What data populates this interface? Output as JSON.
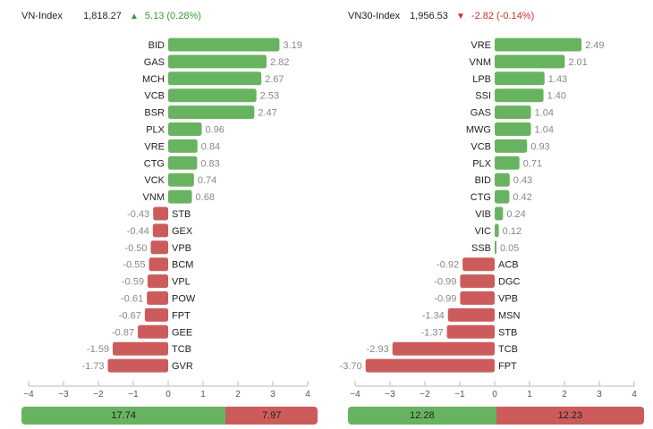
{
  "panels": [
    {
      "header": {
        "name": "VN-Index",
        "value": "1,818.27",
        "direction": "up",
        "arrow": "▲",
        "change": "5.13 (0.28%)"
      },
      "chart_data": {
        "type": "bar",
        "orientation": "horizontal",
        "categories": [
          "BID",
          "GAS",
          "MCH",
          "VCB",
          "BSR",
          "PLX",
          "VRE",
          "CTG",
          "VCK",
          "VNM",
          "STB",
          "GEX",
          "VPB",
          "BCM",
          "VPL",
          "POW",
          "FPT",
          "GEE",
          "TCB",
          "GVR"
        ],
        "values": [
          3.19,
          2.82,
          2.67,
          2.53,
          2.47,
          0.96,
          0.84,
          0.83,
          0.74,
          0.68,
          -0.43,
          -0.44,
          -0.5,
          -0.55,
          -0.59,
          -0.61,
          -0.67,
          -0.87,
          -1.59,
          -1.73
        ],
        "labels": [
          "3.19",
          "2.82",
          "2.67",
          "2.53",
          "2.47",
          "0.96",
          "0.84",
          "0.83",
          "0.74",
          "0.68",
          "-0.43",
          "-0.44",
          "-0.50",
          "-0.55",
          "-0.59",
          "-0.61",
          "-0.67",
          "-0.87",
          "-1.59",
          "-1.73"
        ],
        "xlim": [
          -4,
          4
        ],
        "ticks": [
          "−4",
          "−3",
          "−2",
          "−1",
          "0",
          "1",
          "2",
          "3",
          "4"
        ]
      },
      "summary": {
        "positive": 17.74,
        "negative": 7.97,
        "positive_label": "17.74",
        "negative_label": "7.97"
      }
    },
    {
      "header": {
        "name": "VN30-Index",
        "value": "1,956.53",
        "direction": "down",
        "arrow": "▼",
        "change": "-2.82 (-0.14%)"
      },
      "chart_data": {
        "type": "bar",
        "orientation": "horizontal",
        "categories": [
          "VRE",
          "VNM",
          "LPB",
          "SSI",
          "GAS",
          "MWG",
          "VCB",
          "PLX",
          "BID",
          "CTG",
          "VIB",
          "VIC",
          "SSB",
          "ACB",
          "DGC",
          "VPB",
          "MSN",
          "STB",
          "TCB",
          "FPT"
        ],
        "values": [
          2.49,
          2.01,
          1.43,
          1.4,
          1.04,
          1.04,
          0.93,
          0.71,
          0.43,
          0.42,
          0.24,
          0.12,
          0.05,
          -0.92,
          -0.99,
          -0.99,
          -1.34,
          -1.37,
          -2.93,
          -3.7
        ],
        "labels": [
          "2.49",
          "2.01",
          "1.43",
          "1.40",
          "1.04",
          "1.04",
          "0.93",
          "0.71",
          "0.43",
          "0.42",
          "0.24",
          "0.12",
          "0.05",
          "-0.92",
          "-0.99",
          "-0.99",
          "-1.34",
          "-1.37",
          "-2.93",
          "-3.70"
        ],
        "xlim": [
          -4,
          4
        ],
        "ticks": [
          "−4",
          "−3",
          "−2",
          "−1",
          "0",
          "1",
          "2",
          "3",
          "4"
        ]
      },
      "summary": {
        "positive": 12.28,
        "negative": 12.23,
        "positive_label": "12.28",
        "negative_label": "12.23"
      }
    }
  ],
  "colors": {
    "positive": "#68b35f",
    "negative": "#cc5b5b",
    "axis": "#bbbbbb",
    "label": "#888888",
    "text": "#222222"
  }
}
